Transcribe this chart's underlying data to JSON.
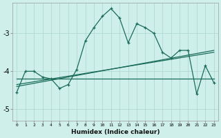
{
  "xlabel": "Humidex (Indice chaleur)",
  "ylabel": "",
  "background_color": "#cff0ea",
  "grid_color": "#aad4cc",
  "line_color": "#1a6b5a",
  "xlim": [
    -0.5,
    23.5
  ],
  "ylim": [
    -5.3,
    -2.2
  ],
  "yticks": [
    -5,
    -4,
    -3
  ],
  "xticks": [
    0,
    1,
    2,
    3,
    4,
    5,
    6,
    7,
    8,
    9,
    10,
    11,
    12,
    13,
    14,
    15,
    16,
    17,
    18,
    19,
    20,
    21,
    22,
    23
  ],
  "series1": [
    [
      0,
      -4.55
    ],
    [
      1,
      -4.0
    ],
    [
      2,
      -4.0
    ],
    [
      3,
      -4.15
    ],
    [
      4,
      -4.2
    ],
    [
      5,
      -4.45
    ],
    [
      6,
      -4.35
    ],
    [
      7,
      -3.95
    ],
    [
      8,
      -3.2
    ],
    [
      9,
      -2.85
    ],
    [
      10,
      -2.55
    ],
    [
      11,
      -2.35
    ],
    [
      12,
      -2.6
    ],
    [
      13,
      -3.25
    ],
    [
      14,
      -2.75
    ],
    [
      15,
      -2.85
    ],
    [
      16,
      -3.0
    ],
    [
      17,
      -3.5
    ],
    [
      18,
      -3.65
    ],
    [
      19,
      -3.45
    ],
    [
      20,
      -3.45
    ],
    [
      21,
      -4.6
    ],
    [
      22,
      -3.85
    ],
    [
      23,
      -4.3
    ]
  ],
  "series2_flat": [
    [
      0,
      -4.2
    ],
    [
      17,
      -4.2
    ],
    [
      23,
      -4.2
    ]
  ],
  "series3_trend": [
    [
      0,
      -4.35
    ],
    [
      23,
      -3.5
    ]
  ],
  "series4_trend2": [
    [
      0,
      -4.4
    ],
    [
      23,
      -3.45
    ]
  ]
}
